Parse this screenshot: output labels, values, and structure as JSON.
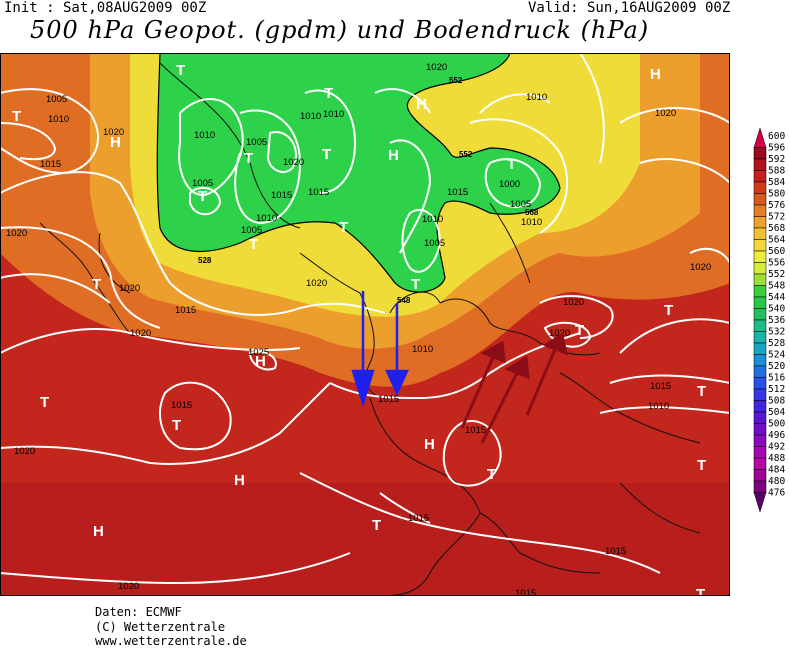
{
  "header": {
    "init": "Init : Sat,08AUG2009 00Z",
    "valid": "Valid: Sun,16AUG2009 00Z",
    "title": "500 hPa Geopot. (gpdm) und Bodendruck (hPa)"
  },
  "footer": {
    "source": "Daten: ECMWF",
    "copyright": "(C) Wetterzentrale",
    "url": "www.wetterzentrale.de"
  },
  "legend": {
    "levels": [
      "600",
      "596",
      "592",
      "588",
      "584",
      "580",
      "576",
      "572",
      "568",
      "564",
      "560",
      "556",
      "552",
      "548",
      "544",
      "540",
      "536",
      "532",
      "528",
      "524",
      "520",
      "516",
      "512",
      "508",
      "504",
      "500",
      "496",
      "492",
      "488",
      "484",
      "480",
      "476"
    ],
    "colors": [
      "#d2004a",
      "#9b0b1f",
      "#b0141e",
      "#c41f1c",
      "#cf3a1d",
      "#d95a20",
      "#e47f26",
      "#ec9f2d",
      "#f1bf33",
      "#f2d838",
      "#ebeb3c",
      "#d8ec3a",
      "#9ae038",
      "#38d038",
      "#27c84a",
      "#22bf60",
      "#20bb88",
      "#1ab5a8",
      "#16a6c2",
      "#1a8ed6",
      "#2070e4",
      "#2a52ea",
      "#3638e6",
      "#4424de",
      "#5716d0",
      "#6f0ec6",
      "#8a0abc",
      "#a608b2",
      "#b806a6",
      "#a00696",
      "#7a0480",
      "#560266"
    ]
  },
  "symbols": {
    "high": "H",
    "low": "T"
  },
  "isobar_labels": [
    "1005",
    "1010",
    "1015",
    "1020"
  ],
  "contour_labels": [
    "552",
    "528",
    "548",
    "552",
    "568"
  ],
  "arrows": {
    "blue_color": "#2020ee",
    "red_color": "#8b0d17"
  },
  "colors": {
    "field_warm": "#c8281c",
    "field_orange": "#e8822a",
    "field_yellow": "#f0e040",
    "field_green": "#2ed24a"
  }
}
